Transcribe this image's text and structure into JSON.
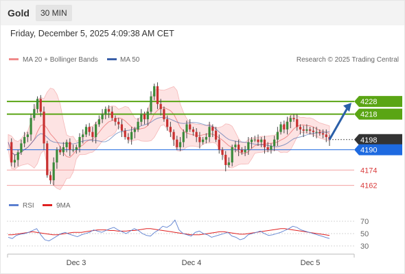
{
  "header": {
    "title": "Gold",
    "timeframe": "30 MIN"
  },
  "timestamp": "Friday, December 5, 2025 4:09:38 AM CET",
  "legend": {
    "ma20": "MA 20 + Bollinger Bands",
    "ma50": "MA 50",
    "credit": "Research © 2025 Trading Central",
    "rsi": "RSI",
    "rsi9": "9MA"
  },
  "colors": {
    "ma20": "#f08a8a",
    "ma50": "#3a5fa8",
    "green": "#5aa514",
    "blue_level": "#1e6ae0",
    "red_level": "#f3a0a0",
    "price_tag": "#333333",
    "arrow": "#2a5fa8",
    "candle_up": "#3a8a3a",
    "candle_down": "#c83030"
  },
  "chart_data": {
    "type": "candlestick",
    "x_labels": [
      "Dec 3",
      "Dec 4",
      "Dec 5"
    ],
    "y_range": [
      4158,
      4255
    ],
    "levels": [
      {
        "value": 4228,
        "label": "4228",
        "kind": "resistance"
      },
      {
        "value": 4218,
        "label": "4218",
        "kind": "resistance"
      },
      {
        "value": 4198,
        "label": "4198",
        "kind": "current_price"
      },
      {
        "value": 4190,
        "label": "4190",
        "kind": "pivot"
      },
      {
        "value": 4174,
        "label": "4174",
        "kind": "support"
      },
      {
        "value": 4162,
        "label": "4162",
        "kind": "support"
      }
    ],
    "forecast_arrow": {
      "from": 4198,
      "to": 4228,
      "direction": "up"
    },
    "close_path": [
      4196,
      4180,
      4182,
      4188,
      4195,
      4200,
      4202,
      4215,
      4222,
      4230,
      4220,
      4195,
      4170,
      4166,
      4180,
      4190,
      4188,
      4192,
      4196,
      4190,
      4190,
      4192,
      4200,
      4202,
      4208,
      4204,
      4200,
      4210,
      4214,
      4218,
      4222,
      4220,
      4215,
      4212,
      4210,
      4205,
      4200,
      4198,
      4204,
      4206,
      4212,
      4218,
      4214,
      4220,
      4232,
      4240,
      4226,
      4222,
      4214,
      4208,
      4204,
      4198,
      4192,
      4196,
      4204,
      4210,
      4206,
      4204,
      4200,
      4196,
      4198,
      4200,
      4208,
      4205,
      4198,
      4190,
      4186,
      4178,
      4180,
      4192,
      4194,
      4190,
      4188,
      4190,
      4196,
      4198,
      4198,
      4196,
      4198,
      4192,
      4190,
      4193,
      4198,
      4204,
      4210,
      4206,
      4212,
      4215,
      4214,
      4208,
      4206,
      4205,
      4206,
      4205,
      4204,
      4204,
      4203,
      4202,
      4200,
      4198
    ],
    "rsi": {
      "levels": [
        70,
        50,
        30
      ],
      "y_range": [
        20,
        80
      ],
      "values": [
        44,
        42,
        47,
        49,
        50,
        52,
        55,
        58,
        48,
        40,
        38,
        42,
        46,
        50,
        52,
        49,
        47,
        45,
        48,
        50,
        52,
        56,
        54,
        52,
        55,
        58,
        60,
        56,
        53,
        50,
        54,
        58,
        55,
        50,
        47,
        46,
        52,
        56,
        62,
        60,
        64,
        72,
        56,
        50,
        48,
        46,
        52,
        54,
        50,
        48,
        44,
        46,
        48,
        50,
        52,
        46,
        44,
        40,
        42,
        48,
        50,
        52,
        54,
        50,
        47,
        48,
        50,
        52,
        55,
        58,
        62,
        60,
        56,
        54,
        52,
        50,
        48,
        46,
        44,
        42
      ],
      "ma9": [
        48,
        48,
        49,
        50,
        51,
        52,
        53,
        52,
        51,
        50,
        49,
        48,
        48,
        49,
        50,
        51,
        52,
        52,
        52,
        53,
        54,
        55,
        56,
        56,
        56,
        55,
        55,
        54,
        54,
        54,
        55,
        55,
        56,
        57,
        58,
        58,
        57,
        56,
        55,
        54,
        53,
        52,
        51,
        50,
        49,
        48,
        48,
        48,
        49,
        50,
        51,
        52,
        53,
        53,
        52,
        51,
        50,
        49,
        49,
        50,
        51,
        52,
        53,
        54,
        55,
        56,
        57,
        58,
        58,
        57,
        56,
        55,
        54,
        53,
        52,
        51,
        50,
        49,
        48,
        47
      ]
    }
  }
}
